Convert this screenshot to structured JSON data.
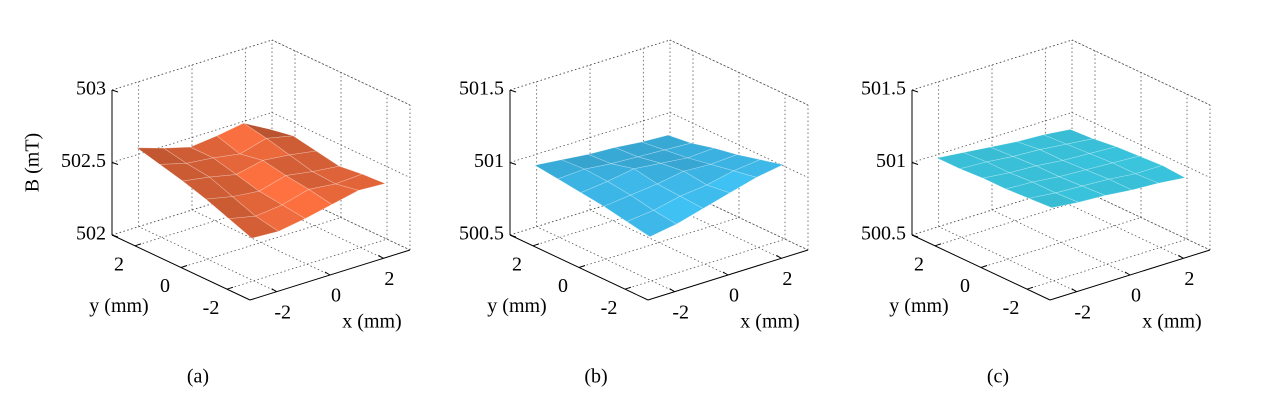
{
  "chart_data": [
    {
      "type": "surface",
      "subtitle": "(a)",
      "zlabel": "B (mT)",
      "xlabel": "x (mm)",
      "ylabel": "y (mm)",
      "x": [
        -2.5,
        -1.5,
        -0.5,
        0.5,
        1.5,
        2.5
      ],
      "y": [
        -2.5,
        -1.5,
        -0.5,
        0.5,
        1.5,
        2.5
      ],
      "z": [
        [
          502.36,
          502.35,
          502.38,
          502.42,
          502.46,
          502.45
        ],
        [
          502.42,
          502.38,
          502.4,
          502.45,
          502.43,
          502.44
        ],
        [
          502.48,
          502.44,
          502.42,
          502.47,
          502.44,
          502.42
        ],
        [
          502.53,
          502.5,
          502.46,
          502.5,
          502.48,
          502.45
        ],
        [
          502.57,
          502.52,
          502.5,
          502.47,
          502.52,
          502.48
        ],
        [
          502.61,
          502.55,
          502.5,
          502.52,
          502.55,
          502.45
        ]
      ],
      "xlim": [
        -3,
        3
      ],
      "ylim": [
        -3,
        3
      ],
      "zlim": [
        502,
        503
      ],
      "xticks": [
        -2,
        0,
        2
      ],
      "yticks": [
        -2,
        0,
        2
      ],
      "zticks": [
        502,
        502.5,
        503
      ],
      "color": "#ee6a3c",
      "grid": true
    },
    {
      "type": "surface",
      "subtitle": "(b)",
      "xlabel": "x (mm)",
      "ylabel": "y (mm)",
      "x": [
        -2.5,
        -1.5,
        -0.5,
        0.5,
        1.5,
        2.5
      ],
      "y": [
        -2.5,
        -1.5,
        -0.5,
        0.5,
        1.5,
        2.5
      ],
      "z": [
        [
          500.87,
          500.9,
          500.95,
          501.0,
          501.05,
          501.08
        ],
        [
          500.9,
          500.92,
          500.96,
          500.98,
          501.02,
          501.04
        ],
        [
          500.93,
          500.95,
          500.97,
          501.0,
          500.99,
          501.0
        ],
        [
          500.95,
          500.97,
          501.0,
          500.98,
          500.96,
          500.97
        ],
        [
          500.97,
          500.98,
          500.96,
          500.95,
          500.94,
          500.93
        ],
        [
          500.99,
          500.97,
          500.95,
          500.94,
          500.92,
          500.91
        ]
      ],
      "xlim": [
        -3,
        3
      ],
      "ylim": [
        -3,
        3
      ],
      "zlim": [
        500.5,
        501.5
      ],
      "xticks": [
        -2,
        0,
        2
      ],
      "yticks": [
        -2,
        0,
        2
      ],
      "zticks": [
        500.5,
        501,
        501.5
      ],
      "color": "#3cb6e6",
      "grid": true
    },
    {
      "type": "surface",
      "subtitle": "(c)",
      "xlabel": "x (mm)",
      "ylabel": "y (mm)",
      "x": [
        -2.5,
        -1.5,
        -0.5,
        0.5,
        1.5,
        2.5
      ],
      "y": [
        -2.5,
        -1.5,
        -0.5,
        0.5,
        1.5,
        2.5
      ],
      "z": [
        [
          501.07,
          501.05,
          501.04,
          501.02,
          501.01,
          500.99
        ],
        [
          501.06,
          501.04,
          501.03,
          501.02,
          501.0,
          501.0
        ],
        [
          501.05,
          501.04,
          501.02,
          501.01,
          501.0,
          500.99
        ],
        [
          501.05,
          501.03,
          501.02,
          501.0,
          500.99,
          500.98
        ],
        [
          501.04,
          501.03,
          501.01,
          501.0,
          500.98,
          500.96
        ],
        [
          501.04,
          501.02,
          501.0,
          500.98,
          500.97,
          500.95
        ]
      ],
      "xlim": [
        -3,
        3
      ],
      "ylim": [
        -3,
        3
      ],
      "zlim": [
        500.5,
        501.5
      ],
      "xticks": [
        -2,
        0,
        2
      ],
      "yticks": [
        -2,
        0,
        2
      ],
      "zticks": [
        500.5,
        501,
        501.5
      ],
      "color": "#3ed2ec",
      "grid": true
    }
  ]
}
